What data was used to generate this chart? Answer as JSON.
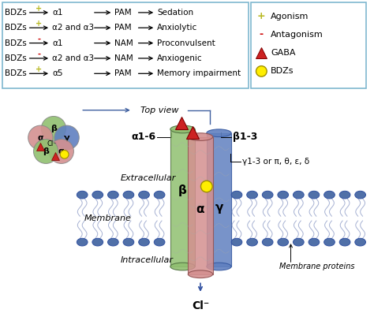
{
  "bg_color": "#ffffff",
  "box_color": "#7fb8d0",
  "table_rows": [
    {
      "sign": "+",
      "sign_color": "#b8b820",
      "alpha": "α1",
      "mod": "PAM",
      "effect": "Sedation"
    },
    {
      "sign": "+",
      "sign_color": "#b8b820",
      "alpha": "α2 and α3",
      "mod": "PAM",
      "effect": "Anxiolytic"
    },
    {
      "sign": "-",
      "sign_color": "#cc0000",
      "alpha": "α1",
      "mod": "NAM",
      "effect": "Proconvulsent"
    },
    {
      "sign": "-",
      "sign_color": "#cc0000",
      "alpha": "α2 and α3",
      "mod": "NAM",
      "effect": "Anxiogenic"
    },
    {
      "sign": "+",
      "sign_color": "#b8b820",
      "alpha": "α5",
      "mod": "PAM",
      "effect": "Memory impairment"
    }
  ],
  "subunit_colors": {
    "alpha": "#d49090",
    "beta": "#90c070",
    "gamma": "#6080c0"
  },
  "label_alpha16": "α1-6",
  "label_beta13": "β1-3",
  "label_gamma": "γ1-3 or π, θ, ε, δ",
  "top_view_label": "Top view",
  "extracellular_label": "Extracellular",
  "membrane_label": "Membrane",
  "intracellular_label": "Intracellular",
  "membrane_proteins_label": "Membrane proteins",
  "cl_label": "Cl⁻",
  "mem_head_color": "#5070a8",
  "mem_head_edge": "#3050a0",
  "mem_tail_color": "#8090c0"
}
